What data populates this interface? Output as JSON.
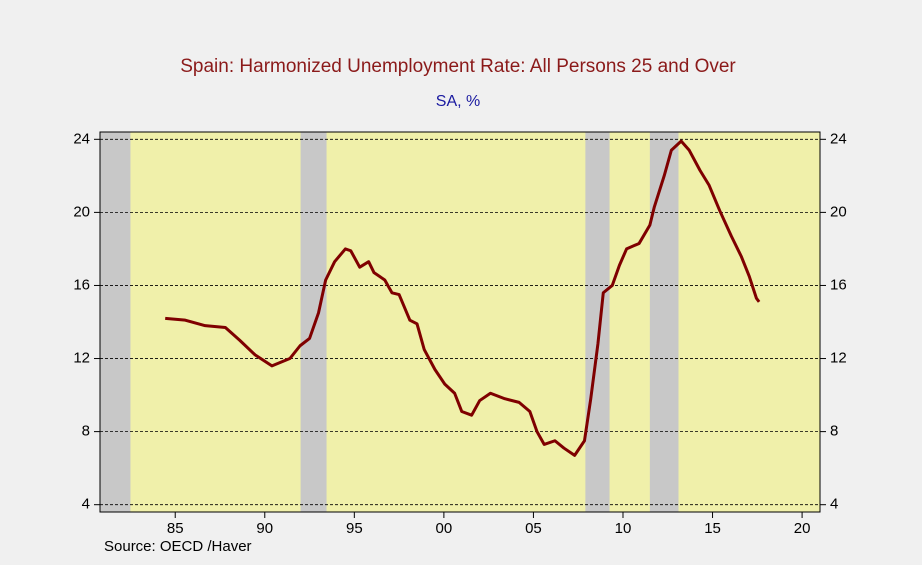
{
  "chart_data": {
    "type": "line",
    "title": "Spain: Harmonized Unemployment Rate: All Persons 25 and Over",
    "subtitle": "SA, %",
    "source": "Source:  OECD /Haver",
    "x": [
      1984.44,
      1985.56,
      1986.67,
      1987.8,
      1988.6,
      1989.46,
      1990.4,
      1991.4,
      1991.97,
      1992.5,
      1993.0,
      1993.4,
      1993.9,
      1994.5,
      1994.8,
      1995.3,
      1995.8,
      1996.1,
      1996.7,
      1997.1,
      1997.5,
      1998.1,
      1998.5,
      1998.9,
      1999.5,
      2000.05,
      2000.6,
      2001.0,
      2001.55,
      2002.0,
      2002.6,
      2003.4,
      2004.2,
      2004.8,
      2005.2,
      2005.6,
      2006.2,
      2006.7,
      2007.3,
      2007.85,
      2008.2,
      2008.6,
      2008.9,
      2009.4,
      2009.8,
      2010.2,
      2010.9,
      2011.5,
      2011.75,
      2012.3,
      2012.7,
      2013.25,
      2013.7,
      2014.3,
      2014.8,
      2015.4,
      2016.05,
      2016.6,
      2017.05,
      2017.45,
      2017.6
    ],
    "series": [
      {
        "color": "#7f0000",
        "values": [
          14.2,
          14.1,
          13.8,
          13.7,
          13.0,
          12.2,
          11.6,
          12.0,
          12.7,
          13.1,
          14.5,
          16.3,
          17.3,
          18.0,
          17.9,
          17.0,
          17.3,
          16.7,
          16.3,
          15.6,
          15.5,
          14.1,
          13.9,
          12.5,
          11.4,
          10.6,
          10.1,
          9.1,
          8.9,
          9.7,
          10.1,
          9.8,
          9.6,
          9.1,
          8.0,
          7.3,
          7.5,
          7.1,
          6.7,
          7.5,
          9.8,
          12.8,
          15.6,
          16.0,
          17.1,
          18.0,
          18.3,
          19.3,
          20.3,
          22.0,
          23.4,
          23.9,
          23.4,
          22.3,
          21.5,
          20.1,
          18.7,
          17.6,
          16.5,
          15.3,
          15.1
        ]
      }
    ],
    "shaded_ranges": [
      [
        1980.8,
        1982.5
      ],
      [
        1992.0,
        1993.45
      ],
      [
        2007.9,
        2009.25
      ],
      [
        2011.5,
        2013.1
      ]
    ],
    "shade_color": "#c8c8c8",
    "plot_background": "#f0f0aa",
    "xlim": [
      1980.8,
      2021
    ],
    "xticks": [
      {
        "value": 1985,
        "label": "85"
      },
      {
        "value": 1990,
        "label": "90"
      },
      {
        "value": 1995,
        "label": "95"
      },
      {
        "value": 2000,
        "label": "00"
      },
      {
        "value": 2005,
        "label": "05"
      },
      {
        "value": 2010,
        "label": "10"
      },
      {
        "value": 2015,
        "label": "15"
      },
      {
        "value": 2020,
        "label": "20"
      }
    ],
    "ylim": [
      3.6,
      24.4
    ],
    "yticks": [
      4,
      8,
      12,
      16,
      20,
      24
    ],
    "y2lim": [
      3.6,
      24.4
    ],
    "y2ticks": [
      4,
      8,
      12,
      16,
      20,
      24
    ],
    "grid": true
  }
}
